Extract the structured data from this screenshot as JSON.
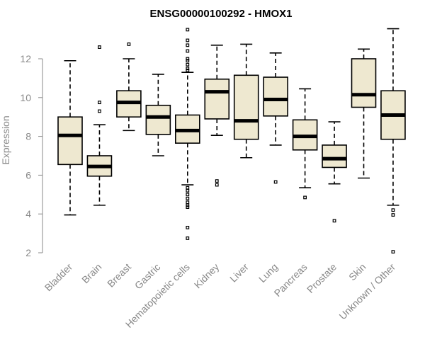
{
  "chart_data": {
    "type": "box",
    "title": "ENSG00000100292 - HMOX1",
    "xlabel": "",
    "ylabel": "Expression",
    "ylim": [
      2,
      13.6
    ],
    "yticks": [
      2,
      4,
      6,
      8,
      10,
      12
    ],
    "box_color": "#eee8d0",
    "categories": [
      "Bladder",
      "Brain",
      "Breast",
      "Gastric",
      "Hematopoietic cells",
      "Kidney",
      "Liver",
      "Lung",
      "Pancreas",
      "Prostate",
      "Skin",
      "Unknown / Other"
    ],
    "boxes": [
      {
        "name": "Bladder",
        "min": 3.95,
        "q1": 6.55,
        "median": 8.05,
        "q3": 9.0,
        "max": 11.9,
        "outliers": []
      },
      {
        "name": "Brain",
        "min": 4.45,
        "q1": 5.95,
        "median": 6.45,
        "q3": 7.0,
        "max": 8.6,
        "outliers": [
          9.3,
          9.75,
          12.6
        ]
      },
      {
        "name": "Breast",
        "min": 8.3,
        "q1": 9.0,
        "median": 9.75,
        "q3": 10.35,
        "max": 12.0,
        "outliers": [
          12.75
        ]
      },
      {
        "name": "Gastric",
        "min": 7.0,
        "q1": 8.1,
        "median": 9.0,
        "q3": 9.6,
        "max": 11.2,
        "outliers": []
      },
      {
        "name": "Hematopoietic cells",
        "min": 5.5,
        "q1": 7.65,
        "median": 8.3,
        "q3": 9.1,
        "max": 11.3,
        "outliers": [
          2.75,
          3.3,
          4.35,
          4.45,
          4.6,
          4.8,
          5.0,
          5.2,
          5.35,
          11.4,
          11.5,
          11.7,
          11.9,
          12.0,
          12.4,
          12.7,
          12.95,
          13.5
        ]
      },
      {
        "name": "Kidney",
        "min": 8.05,
        "q1": 8.9,
        "median": 10.3,
        "q3": 10.95,
        "max": 12.7,
        "outliers": [
          5.5,
          5.7
        ]
      },
      {
        "name": "Liver",
        "min": 6.9,
        "q1": 7.85,
        "median": 8.8,
        "q3": 11.15,
        "max": 12.75,
        "outliers": []
      },
      {
        "name": "Lung",
        "min": 7.55,
        "q1": 9.05,
        "median": 9.9,
        "q3": 11.05,
        "max": 12.3,
        "outliers": [
          5.65
        ]
      },
      {
        "name": "Pancreas",
        "min": 5.35,
        "q1": 7.3,
        "median": 8.0,
        "q3": 8.85,
        "max": 10.45,
        "outliers": [
          4.85
        ]
      },
      {
        "name": "Prostate",
        "min": 5.55,
        "q1": 6.4,
        "median": 6.85,
        "q3": 7.55,
        "max": 8.75,
        "outliers": [
          3.65
        ]
      },
      {
        "name": "Skin",
        "min": 5.85,
        "q1": 9.5,
        "median": 10.15,
        "q3": 12.0,
        "max": 12.5,
        "outliers": []
      },
      {
        "name": "Unknown / Other",
        "min": 4.45,
        "q1": 7.85,
        "median": 9.1,
        "q3": 10.35,
        "max": 13.55,
        "outliers": [
          2.05,
          3.95,
          4.2
        ]
      }
    ]
  }
}
